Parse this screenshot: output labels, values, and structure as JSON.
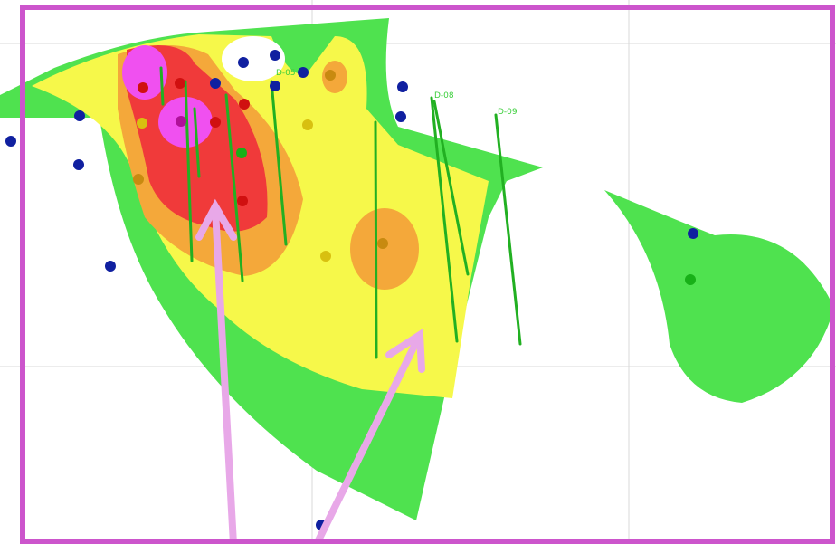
{
  "drillholes": [
    {
      "label": "D-05"
    },
    {
      "label": "D-08"
    },
    {
      "label": "D-09"
    }
  ]
}
